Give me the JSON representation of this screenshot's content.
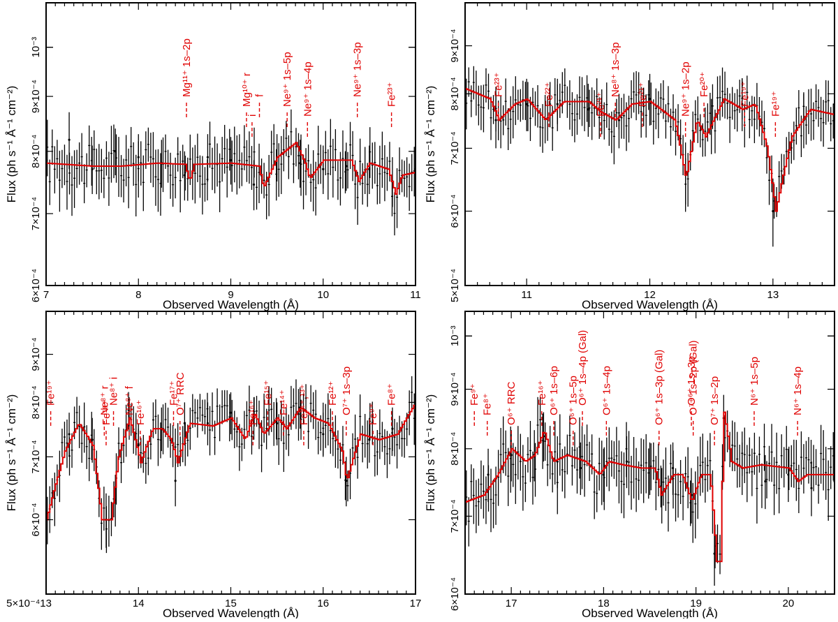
{
  "chart_data": [
    {
      "type": "line",
      "panel": "top-left",
      "xlabel": "Observed Wavelength (Å)",
      "ylabel": "Flux (ph s⁻¹ Å⁻¹ cm⁻²)",
      "xlim": [
        7,
        11
      ],
      "ylim": [
        0.0006,
        0.0011
      ],
      "x_ticks": [
        7,
        8,
        9,
        10,
        11
      ],
      "x_tick_labels": [
        "7",
        "8",
        "9",
        "10",
        "11"
      ],
      "y_ticks": [
        0.0006,
        0.0007,
        0.0008,
        0.0009,
        0.001
      ],
      "y_tick_labels": [
        "6×10⁻⁴",
        "7×10⁻⁴",
        "8×10⁻⁴",
        "9×10⁻⁴",
        "10⁻³"
      ],
      "series": [
        {
          "name": "data",
          "x": [
            7.0,
            7.25,
            7.5,
            7.75,
            8.0,
            8.25,
            8.5,
            8.75,
            9.0,
            9.25,
            9.5,
            9.75,
            10.0,
            10.25,
            10.5,
            10.75,
            11.0
          ],
          "y": [
            0.000785,
            0.00082,
            0.00077,
            0.0008,
            0.00079,
            0.00078,
            0.00076,
            0.00079,
            0.000785,
            0.000745,
            0.00079,
            0.00078,
            0.00077,
            0.000775,
            0.00077,
            0.00075,
            0.00077
          ],
          "yerr": [
            4e-05,
            5e-05,
            4e-05,
            4e-05,
            4e-05,
            4e-05,
            4e-05,
            4e-05,
            4e-05,
            4e-05,
            4e-05,
            4e-05,
            4e-05,
            4e-05,
            4e-05,
            4e-05,
            4e-05
          ]
        },
        {
          "name": "model",
          "x": [
            7.0,
            7.5,
            7.8,
            8.2,
            8.5,
            8.55,
            8.6,
            9.0,
            9.3,
            9.35,
            9.5,
            9.7,
            9.8,
            9.85,
            10.0,
            10.3,
            10.38,
            10.5,
            10.7,
            10.78,
            10.85,
            11.0
          ],
          "y": [
            0.00078,
            0.000775,
            0.000775,
            0.00078,
            0.000778,
            0.00075,
            0.000778,
            0.00078,
            0.000775,
            0.00074,
            0.00079,
            0.000815,
            0.00078,
            0.000755,
            0.000785,
            0.000785,
            0.00075,
            0.00078,
            0.00077,
            0.00073,
            0.00076,
            0.000765
          ]
        }
      ],
      "annotations": [
        {
          "text": "Mg¹¹⁺ 1s–2p",
          "x": 8.52
        },
        {
          "text": "Mg¹⁰⁺ r",
          "x": 9.17
        },
        {
          "text": "i",
          "x": 9.23
        },
        {
          "text": "f",
          "x": 9.31
        },
        {
          "text": "Ne⁹⁺ 1s–5p",
          "x": 9.61
        },
        {
          "text": "Ne⁹⁺ 1s–4p",
          "x": 9.83
        },
        {
          "text": "Ne⁹⁺ 1s–3p",
          "x": 10.37
        },
        {
          "text": "Fe²³⁺",
          "x": 10.74
        }
      ]
    },
    {
      "type": "line",
      "panel": "top-right",
      "xlabel": "Observed Wavelength (Å)",
      "ylabel": "Flux (ph s⁻¹ Å⁻¹ cm⁻²)",
      "xlim": [
        10.5,
        13.5
      ],
      "ylim": [
        0.0005,
        0.001
      ],
      "x_ticks": [
        11,
        12,
        13
      ],
      "x_tick_labels": [
        "11",
        "12",
        "13"
      ],
      "y_ticks": [
        0.0005,
        0.0006,
        0.0007,
        0.0008,
        0.0009
      ],
      "y_tick_labels": [
        "5×10⁻⁴",
        "6×10⁻⁴",
        "7×10⁻⁴",
        "8×10⁻⁴",
        "9×10⁻⁴"
      ],
      "series": [
        {
          "name": "data",
          "x": [
            10.5,
            10.75,
            11.0,
            11.25,
            11.5,
            11.75,
            12.0,
            12.29,
            12.5,
            12.75,
            13.0,
            13.25,
            13.5
          ],
          "y": [
            0.00081,
            0.00075,
            0.00078,
            0.00078,
            0.00077,
            0.00075,
            0.00079,
            0.00066,
            0.00074,
            0.00078,
            0.0006,
            0.00075,
            0.00078
          ],
          "yerr": [
            5e-05,
            5e-05,
            5e-05,
            5e-05,
            5e-05,
            5e-05,
            5e-05,
            5e-05,
            5e-05,
            5e-05,
            5e-05,
            5e-05,
            5e-05
          ]
        },
        {
          "name": "model",
          "x": [
            10.5,
            10.7,
            10.77,
            10.9,
            11.0,
            11.15,
            11.3,
            11.5,
            11.6,
            11.72,
            11.85,
            12.0,
            12.2,
            12.29,
            12.38,
            12.45,
            12.6,
            12.75,
            12.85,
            12.95,
            13.02,
            13.15,
            13.3,
            13.5
          ],
          "y": [
            0.00081,
            0.00079,
            0.00075,
            0.00078,
            0.00079,
            0.00075,
            0.000785,
            0.000785,
            0.000765,
            0.00075,
            0.00078,
            0.000785,
            0.00075,
            0.00065,
            0.00075,
            0.00072,
            0.00079,
            0.00077,
            0.00078,
            0.0007,
            0.0006,
            0.00072,
            0.00077,
            0.00076
          ]
        }
      ],
      "annotations": [
        {
          "text": "Fe²³⁺",
          "x": 10.77
        },
        {
          "text": "Fe²²⁺",
          "x": 11.18
        },
        {
          "text": "Fe²¹⁺",
          "x": 11.6
        },
        {
          "text": "Ne⁸⁺ 1s–3p",
          "x": 11.72
        },
        {
          "text": "Fe²¹⁺",
          "x": 11.94
        },
        {
          "text": "Ne⁹⁺ 1s–2p",
          "x": 12.29
        },
        {
          "text": "Fe²⁰⁺",
          "x": 12.44
        },
        {
          "text": "Fe¹⁹⁺",
          "x": 12.77
        },
        {
          "text": "Fe¹⁹⁺",
          "x": 13.02
        }
      ]
    },
    {
      "type": "line",
      "panel": "bottom-left",
      "xlabel": "Observed Wavelength (Å)",
      "ylabel": "Flux (ph s⁻¹ Å⁻¹ cm⁻²)",
      "xlim": [
        13,
        17
      ],
      "ylim": [
        0.0005,
        0.001
      ],
      "x_ticks": [
        13,
        14,
        15,
        16,
        17
      ],
      "x_tick_labels": [
        "5×10⁻⁴13",
        "14",
        "15",
        "16",
        "17"
      ],
      "y_ticks": [
        0.0005,
        0.0006,
        0.0007,
        0.0008,
        0.0009
      ],
      "y_tick_labels": [
        "",
        "6×10⁻⁴",
        "7×10⁻⁴",
        "8×10⁻⁴",
        "9×10⁻⁴"
      ],
      "series": [
        {
          "name": "data",
          "x": [
            13.0,
            13.25,
            13.5,
            13.65,
            13.75,
            13.9,
            14.0,
            14.25,
            14.4,
            14.5,
            14.75,
            15.0,
            15.25,
            15.5,
            15.75,
            16.0,
            16.25,
            16.5,
            16.75,
            17.0
          ],
          "y": [
            0.00061,
            0.00074,
            0.00073,
            0.0006,
            0.00063,
            0.00077,
            0.00072,
            0.00075,
            0.00066,
            0.00076,
            0.00076,
            0.00078,
            0.00077,
            0.00076,
            0.00079,
            0.00074,
            0.00066,
            0.00073,
            0.00075,
            0.0008
          ],
          "yerr": [
            4e-05,
            4e-05,
            4e-05,
            4e-05,
            4e-05,
            4e-05,
            4e-05,
            4e-05,
            4e-05,
            4e-05,
            4e-05,
            4e-05,
            4e-05,
            4e-05,
            4e-05,
            4e-05,
            4e-05,
            4e-05,
            4e-05,
            4e-05
          ]
        },
        {
          "name": "model",
          "x": [
            13.0,
            13.2,
            13.35,
            13.5,
            13.6,
            13.7,
            13.78,
            13.9,
            14.02,
            14.15,
            14.25,
            14.35,
            14.42,
            14.55,
            14.8,
            15.0,
            15.15,
            15.25,
            15.35,
            15.5,
            15.6,
            15.75,
            15.9,
            16.05,
            16.2,
            16.25,
            16.4,
            16.6,
            16.8,
            17.0
          ],
          "y": [
            0.0006,
            0.00071,
            0.00076,
            0.00072,
            0.0006,
            0.0006,
            0.0007,
            0.00077,
            0.00069,
            0.00075,
            0.00075,
            0.00073,
            0.00069,
            0.00076,
            0.000755,
            0.00077,
            0.00073,
            0.00078,
            0.00074,
            0.00077,
            0.00075,
            0.00079,
            0.00077,
            0.00076,
            0.00071,
            0.00066,
            0.00074,
            0.00073,
            0.00074,
            0.0008
          ]
        }
      ],
      "annotations": [
        {
          "text": "Fe¹⁹⁺",
          "x": 13.05
        },
        {
          "text": "Ne⁸⁺ r",
          "x": 13.63
        },
        {
          "text": "Fe¹⁸⁺",
          "x": 13.65
        },
        {
          "text": "Ne⁸⁺ i",
          "x": 13.73
        },
        {
          "text": "Ne⁸⁺ f",
          "x": 13.9
        },
        {
          "text": "Fe¹⁶⁺",
          "x": 14.02
        },
        {
          "text": "Fe¹⁷⁺",
          "x": 14.38
        },
        {
          "text": "O⁷⁺ RRC",
          "x": 14.45
        },
        {
          "text": "Fe¹⁶⁺",
          "x": 15.24
        },
        {
          "text": "Fe¹⁵⁺",
          "x": 15.4
        },
        {
          "text": "Fe¹⁴⁺",
          "x": 15.57
        },
        {
          "text": "Fe¹⁴⁺,¹³⁺",
          "x": 15.79
        },
        {
          "text": "Fe¹²⁺",
          "x": 16.1
        },
        {
          "text": "O⁷⁺ 1s–3p",
          "x": 16.25
        },
        {
          "text": "Fe⁹⁺",
          "x": 16.54
        },
        {
          "text": "Fe⁸⁺",
          "x": 16.74
        }
      ]
    },
    {
      "type": "line",
      "panel": "bottom-right",
      "xlabel": "Observed Wavelength (Å)",
      "ylabel": "Flux (ph s⁻¹ Å⁻¹ cm⁻²)",
      "xlim": [
        16.5,
        20.5
      ],
      "ylim": [
        0.0006,
        0.00105
      ],
      "x_ticks": [
        17,
        18,
        19,
        20
      ],
      "x_tick_labels": [
        "17",
        "18",
        "19",
        "20"
      ],
      "y_ticks": [
        0.0006,
        0.0007,
        0.0008,
        0.0009,
        0.001
      ],
      "y_tick_labels": [
        "6×10⁻⁴",
        "7×10⁻⁴",
        "8×10⁻⁴",
        "9×10⁻⁴",
        "10⁻³"
      ],
      "series": [
        {
          "name": "data",
          "x": [
            16.5,
            16.75,
            17.0,
            17.25,
            17.35,
            17.5,
            17.75,
            18.0,
            18.25,
            18.5,
            18.63,
            18.75,
            18.95,
            19.2,
            19.3,
            19.5,
            19.75,
            20.0,
            20.25,
            20.5
          ],
          "y": [
            0.00072,
            0.00076,
            0.00079,
            0.00079,
            0.00082,
            0.00078,
            0.00077,
            0.00076,
            0.00078,
            0.00077,
            0.00073,
            0.00077,
            0.00073,
            0.00065,
            0.00085,
            0.00077,
            0.00075,
            0.00076,
            0.00074,
            0.00075
          ],
          "yerr": [
            4e-05,
            4e-05,
            4e-05,
            4e-05,
            4e-05,
            4e-05,
            4e-05,
            4e-05,
            4e-05,
            4e-05,
            4e-05,
            4e-05,
            4e-05,
            4e-05,
            4e-05,
            4e-05,
            4e-05,
            4e-05,
            4e-05,
            4e-05
          ]
        },
        {
          "name": "model",
          "x": [
            16.5,
            16.7,
            16.85,
            17.0,
            17.15,
            17.25,
            17.35,
            17.45,
            17.6,
            17.8,
            17.95,
            18.05,
            18.2,
            18.4,
            18.55,
            18.62,
            18.75,
            18.85,
            18.95,
            19.05,
            19.15,
            19.22,
            19.26,
            19.3,
            19.38,
            19.5,
            19.7,
            20.0,
            20.1,
            20.2,
            20.5
          ],
          "y": [
            0.00072,
            0.00073,
            0.00076,
            0.0008,
            0.00078,
            0.00079,
            0.00083,
            0.00078,
            0.00079,
            0.00078,
            0.00076,
            0.00078,
            0.000775,
            0.00077,
            0.00077,
            0.00073,
            0.00076,
            0.00076,
            0.00072,
            0.00076,
            0.00076,
            0.00064,
            0.00064,
            0.00086,
            0.00078,
            0.00077,
            0.000775,
            0.00077,
            0.00075,
            0.00076,
            0.00076
          ]
        }
      ],
      "annotations": [
        {
          "text": "Fe⁹⁺",
          "x": 16.6
        },
        {
          "text": "Fe⁸⁺",
          "x": 16.74
        },
        {
          "text": "O⁶⁺ RRC",
          "x": 17.0
        },
        {
          "text": "Fe¹⁶⁺",
          "x": 17.33
        },
        {
          "text": "O⁶⁺ 1s–6p",
          "x": 17.46
        },
        {
          "text": "O⁶⁺ 1s–5p",
          "x": 17.67
        },
        {
          "text": "O⁶⁺ 1s–4p (Gal)",
          "x": 17.77
        },
        {
          "text": "O⁶⁺ 1s–4p",
          "x": 18.03
        },
        {
          "text": "O⁶⁺ 1s–3p (Gal)",
          "x": 18.6
        },
        {
          "text": "O⁶⁺ 1s–3p",
          "x": 18.95
        },
        {
          "text": "O⁷⁺ 1s–2p (Gal)",
          "x": 18.97
        },
        {
          "text": "O⁷⁺ 1s–2p",
          "x": 19.2
        },
        {
          "text": "N⁶⁺ 1s–5p",
          "x": 19.63
        },
        {
          "text": "N⁶⁺ 1s–4p",
          "x": 20.1
        }
      ]
    }
  ]
}
